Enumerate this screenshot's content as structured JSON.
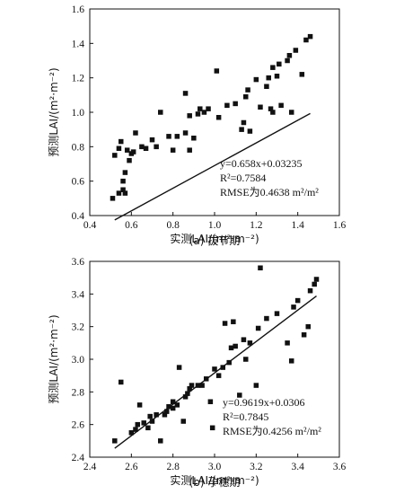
{
  "chart_data": [
    {
      "type": "scatter",
      "panel": "a",
      "caption": "(a) 拔节期",
      "xlabel": "实测LAI/(m²·m⁻²)",
      "ylabel": "预测LAI/(m²·m⁻²)",
      "xlim": [
        0.4,
        1.6
      ],
      "ylim": [
        0.4,
        1.6
      ],
      "xticks": [
        "0.4",
        "0.6",
        "0.8",
        "1.0",
        "1.2",
        "1.4",
        "1.6"
      ],
      "yticks": [
        "0.4",
        "0.6",
        "0.8",
        "1.0",
        "1.2",
        "1.4",
        "1.6"
      ],
      "fit": {
        "slope": 0.658,
        "intercept": 0.03235
      },
      "fit_range": [
        0.52,
        1.46
      ],
      "annotations": [
        "y=0.658x+0.03235",
        "R²=0.7584",
        "RMSE为0.4638 m²/m²"
      ],
      "points": [
        [
          0.51,
          0.5
        ],
        [
          0.52,
          0.75
        ],
        [
          0.54,
          0.53
        ],
        [
          0.54,
          0.79
        ],
        [
          0.55,
          0.83
        ],
        [
          0.56,
          0.55
        ],
        [
          0.56,
          0.6
        ],
        [
          0.57,
          0.53
        ],
        [
          0.57,
          0.65
        ],
        [
          0.58,
          0.78
        ],
        [
          0.59,
          0.72
        ],
        [
          0.6,
          0.76
        ],
        [
          0.61,
          0.77
        ],
        [
          0.62,
          0.88
        ],
        [
          0.65,
          0.8
        ],
        [
          0.67,
          0.79
        ],
        [
          0.7,
          0.84
        ],
        [
          0.72,
          0.8
        ],
        [
          0.74,
          1.0
        ],
        [
          0.78,
          0.86
        ],
        [
          0.8,
          0.78
        ],
        [
          0.82,
          0.86
        ],
        [
          0.86,
          0.88
        ],
        [
          0.86,
          1.11
        ],
        [
          0.88,
          0.78
        ],
        [
          0.88,
          0.98
        ],
        [
          0.9,
          0.85
        ],
        [
          0.92,
          0.99
        ],
        [
          0.93,
          1.02
        ],
        [
          0.95,
          1.0
        ],
        [
          0.97,
          1.02
        ],
        [
          1.01,
          1.24
        ],
        [
          1.02,
          0.97
        ],
        [
          1.06,
          1.04
        ],
        [
          1.1,
          1.05
        ],
        [
          1.13,
          0.9
        ],
        [
          1.14,
          0.94
        ],
        [
          1.15,
          1.09
        ],
        [
          1.16,
          1.13
        ],
        [
          1.17,
          0.89
        ],
        [
          1.2,
          1.19
        ],
        [
          1.22,
          1.03
        ],
        [
          1.25,
          1.15
        ],
        [
          1.26,
          1.2
        ],
        [
          1.27,
          1.02
        ],
        [
          1.28,
          1.0
        ],
        [
          1.28,
          1.26
        ],
        [
          1.3,
          1.21
        ],
        [
          1.31,
          1.28
        ],
        [
          1.32,
          1.04
        ],
        [
          1.35,
          1.3
        ],
        [
          1.36,
          1.33
        ],
        [
          1.37,
          1.0
        ],
        [
          1.39,
          1.36
        ],
        [
          1.42,
          1.22
        ],
        [
          1.44,
          1.42
        ],
        [
          1.46,
          1.44
        ]
      ]
    },
    {
      "type": "scatter",
      "panel": "b",
      "caption": "(b) 孕穗期",
      "xlabel": "实测LAI/(m²·m⁻²)",
      "ylabel": "预测LAI/(m²·m⁻²)",
      "xlim": [
        2.4,
        3.6
      ],
      "ylim": [
        2.4,
        3.6
      ],
      "xticks": [
        "2.4",
        "2.6",
        "2.8",
        "3.0",
        "3.2",
        "3.4",
        "3.6"
      ],
      "yticks": [
        "2.4",
        "2.6",
        "2.8",
        "3.0",
        "3.2",
        "3.4",
        "3.6"
      ],
      "fit": {
        "slope": 0.9619,
        "intercept": 0.0306
      },
      "fit_range": [
        2.52,
        3.49
      ],
      "annotations": [
        "y=0.9619x+0.0306",
        "R²=0.7845",
        "RMSE为0.4256 m²/m²"
      ],
      "points": [
        [
          2.52,
          2.5
        ],
        [
          2.55,
          2.86
        ],
        [
          2.6,
          2.55
        ],
        [
          2.62,
          2.57
        ],
        [
          2.63,
          2.6
        ],
        [
          2.64,
          2.72
        ],
        [
          2.66,
          2.61
        ],
        [
          2.68,
          2.58
        ],
        [
          2.69,
          2.65
        ],
        [
          2.7,
          2.62
        ],
        [
          2.72,
          2.66
        ],
        [
          2.74,
          2.5
        ],
        [
          2.76,
          2.66
        ],
        [
          2.77,
          2.68
        ],
        [
          2.78,
          2.71
        ],
        [
          2.8,
          2.7
        ],
        [
          2.8,
          2.74
        ],
        [
          2.82,
          2.72
        ],
        [
          2.83,
          2.95
        ],
        [
          2.85,
          2.62
        ],
        [
          2.86,
          2.77
        ],
        [
          2.87,
          2.79
        ],
        [
          2.88,
          2.82
        ],
        [
          2.89,
          2.84
        ],
        [
          2.92,
          2.84
        ],
        [
          2.94,
          2.84
        ],
        [
          2.96,
          2.88
        ],
        [
          2.98,
          2.74
        ],
        [
          2.99,
          2.58
        ],
        [
          3.0,
          2.94
        ],
        [
          3.02,
          2.9
        ],
        [
          3.04,
          2.95
        ],
        [
          3.05,
          3.22
        ],
        [
          3.07,
          2.98
        ],
        [
          3.08,
          3.07
        ],
        [
          3.09,
          3.23
        ],
        [
          3.1,
          3.08
        ],
        [
          3.12,
          2.78
        ],
        [
          3.14,
          3.12
        ],
        [
          3.15,
          3.0
        ],
        [
          3.17,
          3.1
        ],
        [
          3.2,
          2.84
        ],
        [
          3.21,
          3.19
        ],
        [
          3.22,
          3.56
        ],
        [
          3.25,
          3.25
        ],
        [
          3.3,
          3.28
        ],
        [
          3.35,
          3.1
        ],
        [
          3.37,
          2.99
        ],
        [
          3.38,
          3.32
        ],
        [
          3.4,
          3.36
        ],
        [
          3.43,
          3.15
        ],
        [
          3.45,
          3.2
        ],
        [
          3.46,
          3.42
        ],
        [
          3.48,
          3.46
        ],
        [
          3.49,
          3.49
        ]
      ]
    }
  ]
}
